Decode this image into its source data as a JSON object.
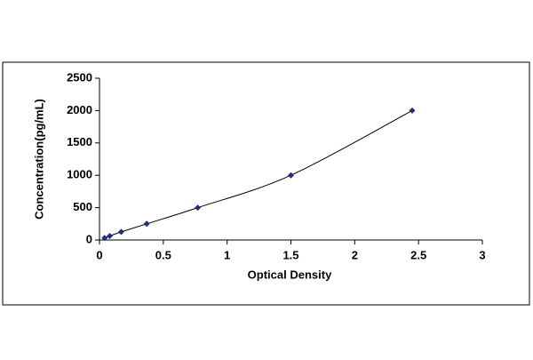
{
  "chart_data": {
    "type": "scatter",
    "x_label": "Optical Density",
    "y_label": "Concentration(pg/mL)",
    "series": [
      {
        "color": "#1f2f7a",
        "x": [
          0.04,
          0.08,
          0.17,
          0.37,
          0.77,
          1.5,
          2.45
        ],
        "values": [
          31.25,
          62.5,
          125,
          250,
          500,
          1000,
          2000
        ]
      }
    ],
    "xlim": [
      0,
      3
    ],
    "xticks": [
      0,
      0.5,
      1,
      1.5,
      2,
      2.5,
      3
    ],
    "ylim": [
      0,
      2500
    ],
    "yticks": [
      0,
      500,
      1000,
      1500,
      2000,
      2500
    ],
    "trendline": true,
    "grid": false
  }
}
